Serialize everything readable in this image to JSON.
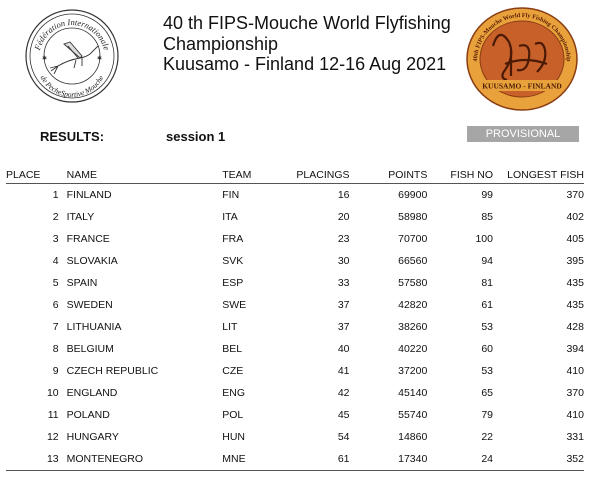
{
  "header": {
    "title_line1": "40 th FIPS-Mouche World Flyfishing",
    "title_line2": "Championship",
    "title_line3": "Kuusamo - Finland 12-16 Aug 2021",
    "left_logo_text_top": "Fédération Internationale",
    "left_logo_text_bottom": "de PecheSportive Mouche",
    "right_logo_text_top": "40th FIPS-Mouche World Fly Fishing Championship",
    "right_logo_text_bottom": "KUUSAMO - FINLAND"
  },
  "results_label": "RESULTS:",
  "session_label": "session 1",
  "status_badge": "PROVISIONAL",
  "colors": {
    "badge_bg": "#a6a6a6",
    "logo_right_bg": "#c8602a",
    "logo_right_ring": "#e9a23b"
  },
  "table": {
    "headers": {
      "place": "PLACE",
      "name": "NAME",
      "team": "TEAM",
      "placings": "PLACINGS",
      "points": "POINTS",
      "fish_no": "FISH NO",
      "longest_fish": "LONGEST FISH"
    },
    "rows": [
      {
        "place": "1",
        "name": "FINLAND",
        "team": "FIN",
        "placings": "16",
        "points": "69900",
        "fish_no": "99",
        "longest": "370"
      },
      {
        "place": "2",
        "name": "ITALY",
        "team": "ITA",
        "placings": "20",
        "points": "58980",
        "fish_no": "85",
        "longest": "402"
      },
      {
        "place": "3",
        "name": "FRANCE",
        "team": "FRA",
        "placings": "23",
        "points": "70700",
        "fish_no": "100",
        "longest": "405"
      },
      {
        "place": "4",
        "name": "SLOVAKIA",
        "team": "SVK",
        "placings": "30",
        "points": "66560",
        "fish_no": "94",
        "longest": "395"
      },
      {
        "place": "5",
        "name": "SPAIN",
        "team": "ESP",
        "placings": "33",
        "points": "57580",
        "fish_no": "81",
        "longest": "435"
      },
      {
        "place": "6",
        "name": "SWEDEN",
        "team": "SWE",
        "placings": "37",
        "points": "42820",
        "fish_no": "61",
        "longest": "435"
      },
      {
        "place": "7",
        "name": "LITHUANIA",
        "team": "LIT",
        "placings": "37",
        "points": "38260",
        "fish_no": "53",
        "longest": "428"
      },
      {
        "place": "8",
        "name": "BELGIUM",
        "team": "BEL",
        "placings": "40",
        "points": "40220",
        "fish_no": "60",
        "longest": "394"
      },
      {
        "place": "9",
        "name": "CZECH REPUBLIC",
        "team": "CZE",
        "placings": "41",
        "points": "37200",
        "fish_no": "53",
        "longest": "410"
      },
      {
        "place": "10",
        "name": "ENGLAND",
        "team": "ENG",
        "placings": "42",
        "points": "45140",
        "fish_no": "65",
        "longest": "370"
      },
      {
        "place": "11",
        "name": "POLAND",
        "team": "POL",
        "placings": "45",
        "points": "55740",
        "fish_no": "79",
        "longest": "410"
      },
      {
        "place": "12",
        "name": "HUNGARY",
        "team": "HUN",
        "placings": "54",
        "points": "14860",
        "fish_no": "22",
        "longest": "331"
      },
      {
        "place": "13",
        "name": "MONTENEGRO",
        "team": "MNE",
        "placings": "61",
        "points": "17340",
        "fish_no": "24",
        "longest": "352"
      }
    ]
  }
}
